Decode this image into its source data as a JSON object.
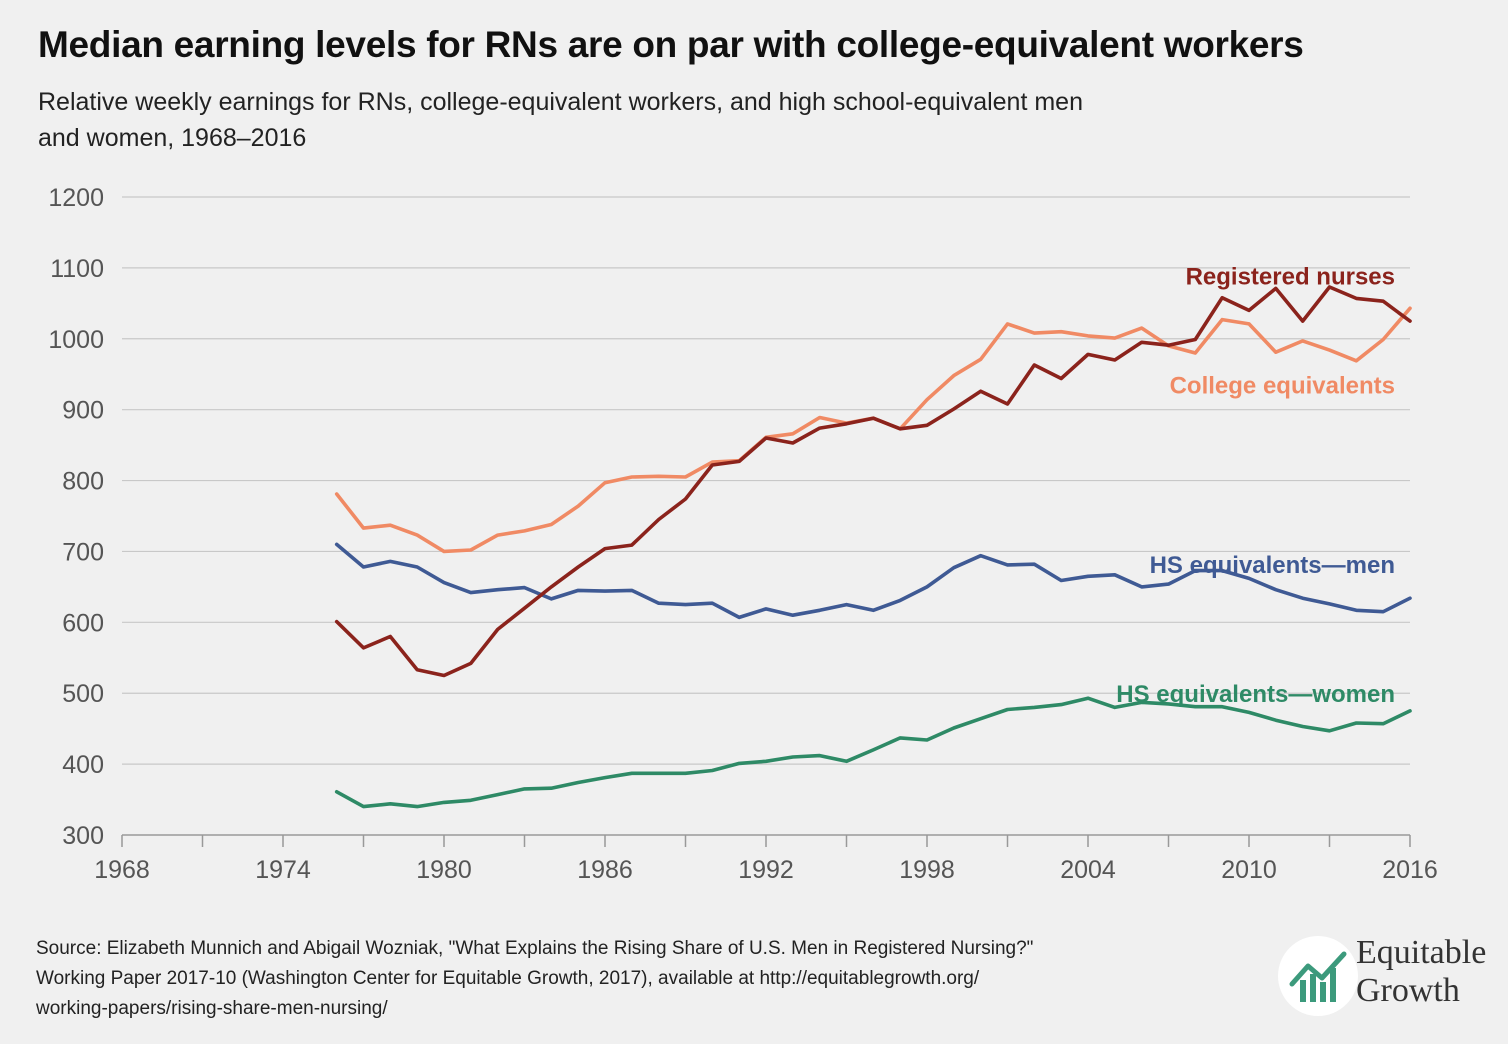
{
  "title": "Median earning levels for RNs are on par with college-equivalent workers",
  "subtitle_lines": [
    "Relative weekly earnings for RNs, college-equivalent workers, and high school-equivalent men",
    "and women, 1968–2016"
  ],
  "source_lines": [
    "Source: Elizabeth Munnich and Abigail Wozniak, \"What Explains the Rising Share of U.S. Men in Registered Nursing?\"",
    "Working Paper 2017-10 (Washington Center for Equitable Growth, 2017), available at http://equitablegrowth.org/",
    "working-papers/rising-share-men-nursing/"
  ],
  "logo": {
    "line1": "Equitable",
    "line2": "Growth",
    "color": "#3c9a7c"
  },
  "colors": {
    "registered_nurses": "#8b231c",
    "college_equivalents": "#f08a64",
    "hs_men": "#3f5a94",
    "hs_women": "#2e8a66",
    "grid": "#c8c8c8",
    "axis": "#999999"
  },
  "chart_data": {
    "type": "line",
    "title": "Median earning levels for RNs are on par with college-equivalent workers",
    "xlabel": "",
    "ylabel": "",
    "xlim": [
      1968,
      2016
    ],
    "ylim": [
      300,
      1200
    ],
    "xticks": [
      1968,
      1974,
      1980,
      1986,
      1992,
      1998,
      2004,
      2010,
      2016
    ],
    "yticks": [
      300,
      400,
      500,
      600,
      700,
      800,
      900,
      1000,
      1100,
      1200
    ],
    "grid": "horizontal",
    "legend": "inline labels",
    "x": [
      1976,
      1977,
      1978,
      1979,
      1980,
      1981,
      1982,
      1983,
      1984,
      1985,
      1986,
      1987,
      1988,
      1989,
      1990,
      1991,
      1992,
      1993,
      1994,
      1995,
      1996,
      1997,
      1998,
      1999,
      2000,
      2001,
      2002,
      2003,
      2004,
      2005,
      2006,
      2007,
      2008,
      2009,
      2010,
      2011,
      2012,
      2013,
      2014,
      2015,
      2016
    ],
    "series": [
      {
        "key": "registered_nurses",
        "name": "Registered nurses",
        "values": [
          601,
          564,
          580,
          533,
          525,
          542,
          590,
          620,
          650,
          678,
          704,
          709,
          745,
          774,
          822,
          827,
          860,
          853,
          874,
          880,
          888,
          873,
          878,
          901,
          926,
          908,
          963,
          944,
          978,
          970,
          995,
          991,
          999,
          1058,
          1040,
          1071,
          1025,
          1073,
          1057,
          1053,
          1025
        ]
      },
      {
        "key": "college_equivalents",
        "name": "College equivalents",
        "values": [
          781,
          733,
          737,
          723,
          700,
          702,
          723,
          729,
          738,
          764,
          797,
          805,
          806,
          805,
          826,
          828,
          861,
          866,
          889,
          881,
          888,
          873,
          914,
          948,
          971,
          1021,
          1008,
          1010,
          1004,
          1001,
          1015,
          990,
          980,
          1027,
          1021,
          981,
          997,
          984,
          969,
          999,
          1043
        ]
      },
      {
        "key": "hs_men",
        "name": "HS equivalents—men",
        "values": [
          710,
          678,
          686,
          678,
          656,
          642,
          646,
          649,
          633,
          645,
          644,
          645,
          627,
          625,
          627,
          607,
          619,
          610,
          617,
          625,
          617,
          631,
          650,
          677,
          694,
          681,
          682,
          659,
          665,
          667,
          650,
          654,
          673,
          673,
          662,
          646,
          634,
          626,
          617,
          615,
          634
        ]
      },
      {
        "key": "hs_women",
        "name": "HS equivalents—women",
        "values": [
          361,
          340,
          344,
          340,
          346,
          349,
          357,
          365,
          366,
          374,
          381,
          387,
          387,
          387,
          391,
          401,
          404,
          410,
          412,
          404,
          420,
          437,
          434,
          451,
          464,
          477,
          480,
          484,
          493,
          480,
          487,
          485,
          481,
          481,
          473,
          462,
          453,
          447,
          458,
          457,
          475
        ]
      }
    ]
  }
}
